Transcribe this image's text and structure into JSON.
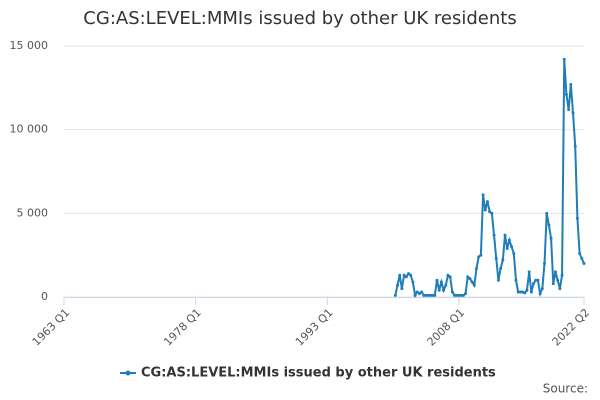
{
  "chart_data": {
    "type": "line",
    "title": "CG:AS:LEVEL:MMIs issued by other UK residents",
    "source": "Source:",
    "xlim": [
      1963,
      2022.25
    ],
    "xticks": [
      {
        "value": 1963,
        "label": "1963 Q1"
      },
      {
        "value": 1978,
        "label": "1978 Q1"
      },
      {
        "value": 1993,
        "label": "1993 Q1"
      },
      {
        "value": 2008,
        "label": "2008 Q1"
      },
      {
        "value": 2022.25,
        "label": "2022 Q2"
      }
    ],
    "ylim": [
      0,
      15000
    ],
    "yticks": [
      0,
      {
        "value": 5000,
        "label": "5 000"
      },
      {
        "value": 10000,
        "label": "10 000"
      },
      {
        "value": 15000,
        "label": "15 000"
      }
    ],
    "grid": true,
    "legend": "bottom",
    "x": [
      2000.75,
      2001,
      2001.25,
      2001.5,
      2001.75,
      2002,
      2002.25,
      2002.5,
      2002.75,
      2003,
      2003.25,
      2003.5,
      2003.75,
      2004,
      2004.25,
      2004.5,
      2004.75,
      2005,
      2005.25,
      2005.5,
      2005.75,
      2006,
      2006.25,
      2006.5,
      2006.75,
      2007,
      2007.25,
      2007.5,
      2007.75,
      2008,
      2008.25,
      2008.5,
      2008.75,
      2009,
      2009.25,
      2009.5,
      2009.75,
      2010,
      2010.25,
      2010.5,
      2010.75,
      2011,
      2011.25,
      2011.5,
      2011.75,
      2012,
      2012.25,
      2012.5,
      2012.75,
      2013,
      2013.25,
      2013.5,
      2013.75,
      2014,
      2014.25,
      2014.5,
      2014.75,
      2015,
      2015.25,
      2015.5,
      2015.75,
      2016,
      2016.25,
      2016.5,
      2016.75,
      2017,
      2017.25,
      2017.5,
      2017.75,
      2018,
      2018.25,
      2018.5,
      2018.75,
      2019,
      2019.25,
      2019.5,
      2019.75,
      2020,
      2020.25,
      2020.5,
      2020.75,
      2021,
      2021.25,
      2021.5,
      2021.75,
      2022,
      2022.25
    ],
    "series": [
      {
        "name": "CG:AS:LEVEL:MMIs issued by other UK residents",
        "color": "#1f7db8",
        "values": [
          100,
          700,
          1300,
          500,
          1300,
          1200,
          1400,
          1300,
          900,
          100,
          300,
          200,
          300,
          100,
          100,
          100,
          100,
          100,
          100,
          1000,
          400,
          900,
          400,
          700,
          1300,
          1200,
          300,
          100,
          100,
          100,
          100,
          100,
          200,
          1200,
          1100,
          900,
          700,
          1700,
          2400,
          2500,
          6100,
          5200,
          5700,
          5100,
          5000,
          3700,
          2300,
          1000,
          1700,
          2200,
          3700,
          2900,
          3400,
          3000,
          2600,
          1000,
          300,
          300,
          300,
          250,
          400,
          1500,
          300,
          800,
          1000,
          1000,
          200,
          500,
          2000,
          5000,
          4300,
          3500,
          800,
          1500,
          1000,
          500,
          1300,
          14200,
          12100,
          11200,
          12700,
          11000,
          9000,
          4700,
          2600,
          2300,
          2000
        ]
      }
    ]
  }
}
